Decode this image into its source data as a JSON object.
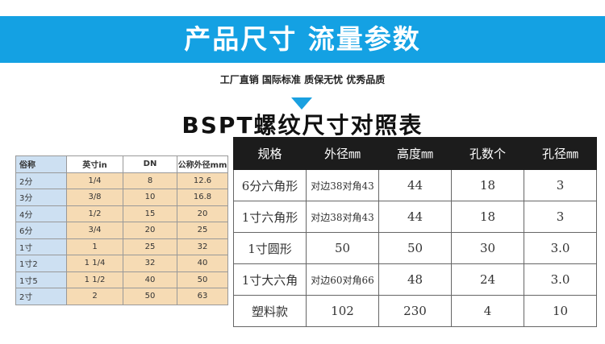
{
  "banner": {
    "title": "产品尺寸  流量参数"
  },
  "subtitle": "工厂直销 国际标准 质保无忧 优秀品质",
  "bspt_title": "BSPT螺纹尺寸对照表",
  "left_table": {
    "headers": [
      "俗称",
      "英寸in",
      "DN",
      "公称外径mm"
    ],
    "rows": [
      [
        "2分",
        "1/4",
        "8",
        "12.6"
      ],
      [
        "3分",
        "3/8",
        "10",
        "16.8"
      ],
      [
        "4分",
        "1/2",
        "15",
        "20"
      ],
      [
        "6分",
        "3/4",
        "20",
        "25"
      ],
      [
        "1寸",
        "1",
        "25",
        "32"
      ],
      [
        "1寸2",
        "1 1/4",
        "32",
        "40"
      ],
      [
        "1寸5",
        "1 1/2",
        "40",
        "50"
      ],
      [
        "2寸",
        "2",
        "50",
        "63"
      ]
    ]
  },
  "right_table": {
    "headers": [
      "规格",
      "外径㎜",
      "高度㎜",
      "孔数个",
      "孔径㎜"
    ],
    "rows": [
      [
        "6分六角形",
        "对边38对角43",
        "44",
        "18",
        "3"
      ],
      [
        "1寸六角形",
        "对边38对角43",
        "44",
        "18",
        "3"
      ],
      [
        "1寸圆形",
        "50",
        "50",
        "30",
        "3.0"
      ],
      [
        "1寸大六角",
        "对边60对角66",
        "48",
        "24",
        "3.0"
      ],
      [
        "塑料款",
        "102",
        "230",
        "4",
        "10"
      ]
    ]
  },
  "colors": {
    "banner": "#14a1e3",
    "header_dark": "#1c1c1c",
    "left_label_col": "#cde0f2",
    "left_value_cols": "#f6dbb4"
  }
}
